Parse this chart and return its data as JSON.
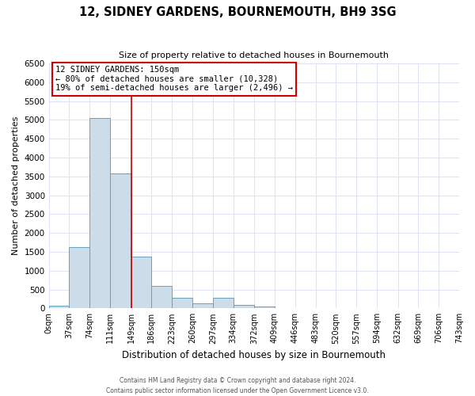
{
  "title": "12, SIDNEY GARDENS, BOURNEMOUTH, BH9 3SG",
  "subtitle": "Size of property relative to detached houses in Bournemouth",
  "xlabel": "Distribution of detached houses by size in Bournemouth",
  "ylabel": "Number of detached properties",
  "bin_edges": [
    0,
    37,
    74,
    111,
    149,
    186,
    223,
    260,
    297,
    334,
    372,
    409,
    446,
    483,
    520,
    557,
    594,
    632,
    669,
    706,
    743
  ],
  "bin_counts": [
    65,
    1620,
    5050,
    3570,
    1380,
    590,
    270,
    140,
    280,
    90,
    50,
    0,
    0,
    0,
    0,
    0,
    0,
    0,
    0,
    0
  ],
  "bar_color": "#ccdce8",
  "bar_edge_color": "#6a9fc0",
  "property_line_x": 149,
  "property_line_color": "#cc0000",
  "annotation_text": "12 SIDNEY GARDENS: 150sqm\n← 80% of detached houses are smaller (10,328)\n19% of semi-detached houses are larger (2,496) →",
  "annotation_box_color": "#cc0000",
  "ylim": [
    0,
    6500
  ],
  "yticks": [
    0,
    500,
    1000,
    1500,
    2000,
    2500,
    3000,
    3500,
    4000,
    4500,
    5000,
    5500,
    6000,
    6500
  ],
  "footer1": "Contains HM Land Registry data © Crown copyright and database right 2024.",
  "footer2": "Contains public sector information licensed under the Open Government Licence v3.0.",
  "tick_labels": [
    "0sqm",
    "37sqm",
    "74sqm",
    "111sqm",
    "149sqm",
    "186sqm",
    "223sqm",
    "260sqm",
    "297sqm",
    "334sqm",
    "372sqm",
    "409sqm",
    "446sqm",
    "483sqm",
    "520sqm",
    "557sqm",
    "594sqm",
    "632sqm",
    "669sqm",
    "706sqm",
    "743sqm"
  ],
  "background_color": "#ffffff",
  "grid_color": "#d8dff0"
}
